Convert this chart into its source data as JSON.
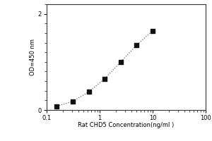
{
  "x_data": [
    0.156,
    0.313,
    0.625,
    1.25,
    2.5,
    5.0,
    10.0
  ],
  "y_data": [
    0.08,
    0.18,
    0.38,
    0.65,
    1.0,
    1.35,
    1.65
  ],
  "xlabel": "Rat CHD5 Concentration(ng/ml )",
  "ylabel": "OD=450 nm",
  "xlim": [
    0.1,
    100
  ],
  "ylim": [
    0,
    2.2
  ],
  "ytick_vals": [
    0,
    2
  ],
  "ytick_labels": [
    "0",
    "2"
  ],
  "xtick_major": [
    0.1,
    1,
    10,
    100
  ],
  "xtick_major_labels": [
    "0.1",
    "1",
    "10",
    "100"
  ],
  "marker_color": "#111111",
  "line_color": "#666666",
  "marker_size": 4,
  "background_color": "#ffffff",
  "axis_fontsize": 6,
  "tick_fontsize": 6,
  "figsize": [
    3.0,
    2.0
  ],
  "dpi": 100
}
